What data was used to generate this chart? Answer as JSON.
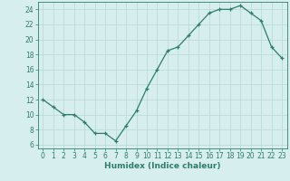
{
  "x": [
    0,
    1,
    2,
    3,
    4,
    5,
    6,
    7,
    8,
    9,
    10,
    11,
    12,
    13,
    14,
    15,
    16,
    17,
    18,
    19,
    20,
    21,
    22,
    23
  ],
  "y": [
    12,
    11,
    10,
    10,
    9,
    7.5,
    7.5,
    6.5,
    8.5,
    10.5,
    13.5,
    16,
    18.5,
    19,
    20.5,
    22,
    23.5,
    24,
    24,
    24.5,
    23.5,
    22.5,
    19,
    17.5
  ],
  "xlabel": "Humidex (Indice chaleur)",
  "ylim": [
    5.5,
    25
  ],
  "xlim": [
    -0.5,
    23.5
  ],
  "yticks": [
    6,
    8,
    10,
    12,
    14,
    16,
    18,
    20,
    22,
    24
  ],
  "xticks": [
    0,
    1,
    2,
    3,
    4,
    5,
    6,
    7,
    8,
    9,
    10,
    11,
    12,
    13,
    14,
    15,
    16,
    17,
    18,
    19,
    20,
    21,
    22,
    23
  ],
  "line_color": "#2e7d6e",
  "marker": "+",
  "bg_color": "#d6eeee",
  "grid_color": "#b8d8d8",
  "label_fontsize": 6.5,
  "tick_fontsize": 5.5,
  "markersize": 3.5,
  "linewidth": 0.9
}
